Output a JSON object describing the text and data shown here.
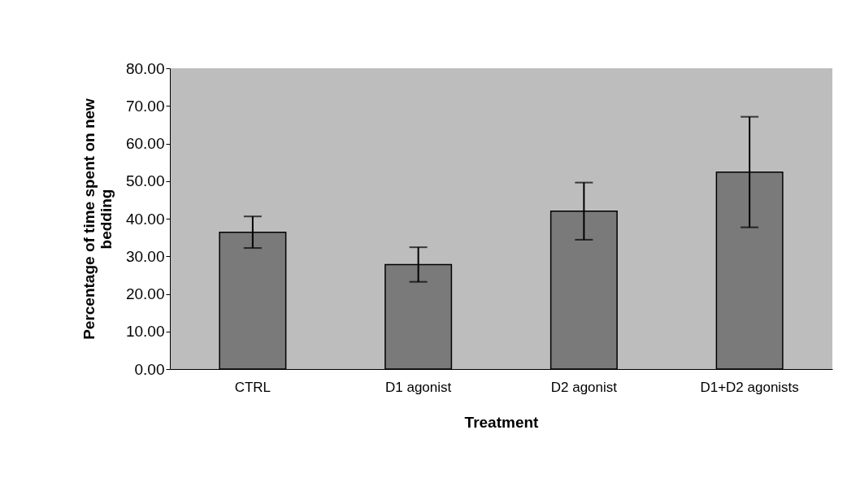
{
  "chart_data": {
    "type": "bar",
    "xlabel": "Treatment",
    "ylabel": "Percentage of time spent on new bedding",
    "categories": [
      "CTRL",
      "D1 agonist",
      "D2 agonist",
      "D1+D2 agonists"
    ],
    "values": [
      36.4,
      27.8,
      42.0,
      52.4
    ],
    "errors": [
      4.2,
      4.6,
      7.6,
      14.7
    ],
    "color": "#7a7a7a",
    "ylim": [
      0,
      80
    ],
    "yticks": [
      {
        "value": 0,
        "label": "0.00"
      },
      {
        "value": 10,
        "label": "10.00"
      },
      {
        "value": 20,
        "label": "20.00"
      },
      {
        "value": 30,
        "label": "30.00"
      },
      {
        "value": 40,
        "label": "40.00"
      },
      {
        "value": 50,
        "label": "50.00"
      },
      {
        "value": 60,
        "label": "60.00"
      },
      {
        "value": 70,
        "label": "70.00"
      },
      {
        "value": 80,
        "label": "80.00"
      }
    ],
    "grid": false
  }
}
